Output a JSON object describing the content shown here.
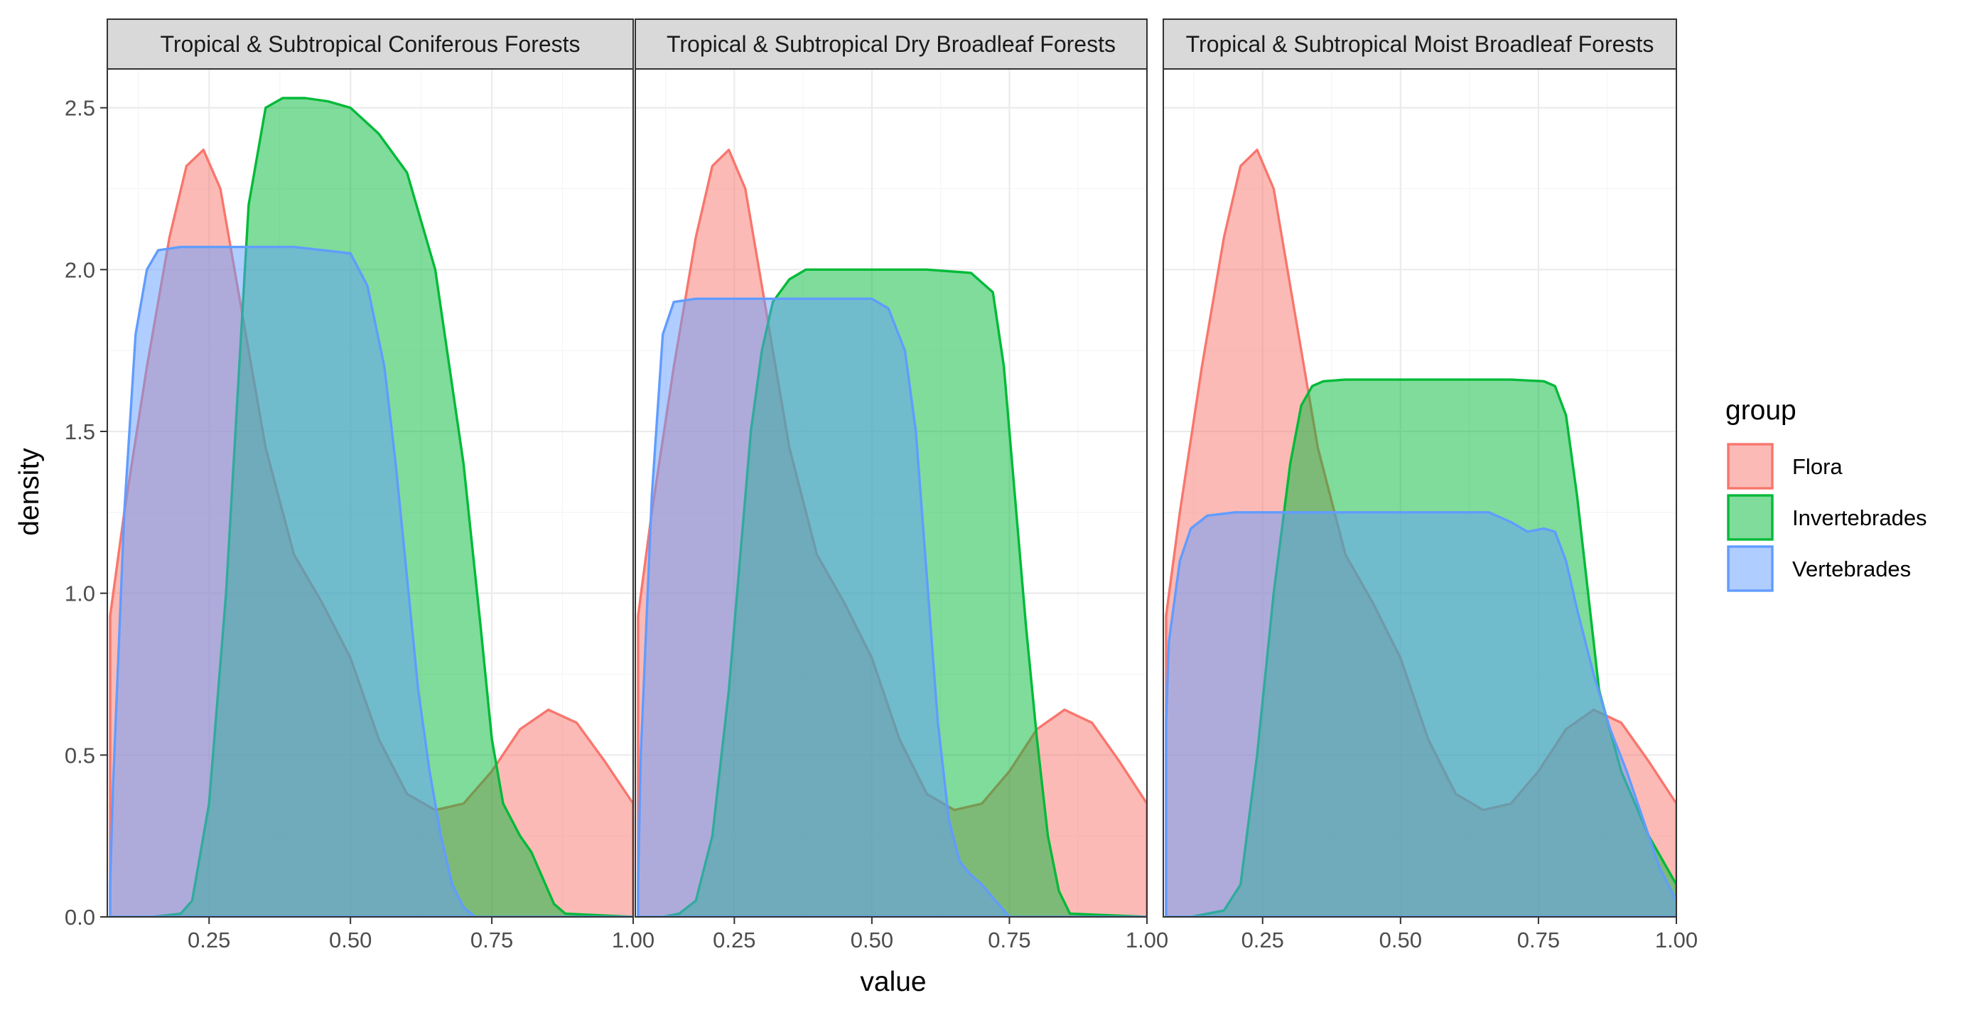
{
  "chart_data": {
    "type": "area",
    "xlabel": "value",
    "ylabel": "density",
    "xlim": [
      0.07,
      1.0
    ],
    "ylim": [
      0,
      2.62
    ],
    "x_ticks": [
      0.25,
      0.5,
      0.75,
      1.0
    ],
    "x_tick_labels": [
      "0.25",
      "0.50",
      "0.75",
      "1.00"
    ],
    "y_ticks": [
      0,
      0.5,
      1,
      1.5,
      2,
      2.5
    ],
    "y_tick_labels": [
      "0.0",
      "0.5",
      "1.0",
      "1.5",
      "2.0",
      "2.5"
    ],
    "grid": true,
    "legend": {
      "title": "group",
      "position": "right",
      "entries": [
        "Flora",
        "Invertebrades",
        "Vertebrades"
      ]
    },
    "colors": {
      "Flora": "#F8766D",
      "Invertebrades": "#00BA38",
      "Vertebrades": "#619CFF"
    },
    "panels": [
      {
        "title": "Tropical & Subtropical Coniferous Forests",
        "series": [
          {
            "name": "Flora",
            "x": [
              0.075,
              0.1,
              0.14,
              0.18,
              0.21,
              0.24,
              0.27,
              0.3,
              0.35,
              0.4,
              0.45,
              0.5,
              0.55,
              0.6,
              0.65,
              0.7,
              0.75,
              0.8,
              0.85,
              0.9,
              0.95,
              1.0
            ],
            "y": [
              0.93,
              1.25,
              1.7,
              2.1,
              2.32,
              2.37,
              2.25,
              1.95,
              1.45,
              1.12,
              0.97,
              0.8,
              0.55,
              0.38,
              0.33,
              0.35,
              0.45,
              0.58,
              0.64,
              0.6,
              0.48,
              0.35
            ]
          },
          {
            "name": "Invertebrades",
            "x": [
              0.075,
              0.15,
              0.2,
              0.22,
              0.25,
              0.28,
              0.3,
              0.32,
              0.35,
              0.38,
              0.42,
              0.46,
              0.5,
              0.55,
              0.6,
              0.65,
              0.7,
              0.73,
              0.75,
              0.77,
              0.8,
              0.82,
              0.84,
              0.86,
              0.88,
              1.0
            ],
            "y": [
              0,
              0,
              0.01,
              0.05,
              0.35,
              1.0,
              1.6,
              2.2,
              2.5,
              2.53,
              2.53,
              2.52,
              2.5,
              2.42,
              2.3,
              2.0,
              1.4,
              0.9,
              0.55,
              0.35,
              0.25,
              0.2,
              0.12,
              0.04,
              0.01,
              0
            ]
          },
          {
            "name": "Vertebrades",
            "x": [
              0.075,
              0.08,
              0.1,
              0.12,
              0.14,
              0.16,
              0.2,
              0.3,
              0.4,
              0.5,
              0.53,
              0.56,
              0.58,
              0.6,
              0.62,
              0.64,
              0.66,
              0.68,
              0.7,
              0.72,
              1.0
            ],
            "y": [
              0.1,
              0.4,
              1.25,
              1.8,
              2.0,
              2.06,
              2.07,
              2.07,
              2.07,
              2.05,
              1.95,
              1.7,
              1.4,
              1.05,
              0.7,
              0.45,
              0.25,
              0.1,
              0.03,
              0,
              0
            ]
          }
        ]
      },
      {
        "title": "Tropical & Subtropical Dry Broadleaf Forests",
        "series": [
          {
            "name": "Flora",
            "x": [
              0.075,
              0.1,
              0.14,
              0.18,
              0.21,
              0.24,
              0.27,
              0.3,
              0.35,
              0.4,
              0.45,
              0.5,
              0.55,
              0.6,
              0.65,
              0.7,
              0.75,
              0.8,
              0.85,
              0.9,
              0.95,
              1.0
            ],
            "y": [
              0.93,
              1.25,
              1.7,
              2.1,
              2.32,
              2.37,
              2.25,
              1.95,
              1.45,
              1.12,
              0.97,
              0.8,
              0.55,
              0.38,
              0.33,
              0.35,
              0.45,
              0.58,
              0.64,
              0.6,
              0.48,
              0.35
            ]
          },
          {
            "name": "Invertebrades",
            "x": [
              0.075,
              0.12,
              0.15,
              0.18,
              0.21,
              0.24,
              0.26,
              0.28,
              0.3,
              0.32,
              0.35,
              0.38,
              0.42,
              0.5,
              0.6,
              0.68,
              0.72,
              0.74,
              0.76,
              0.78,
              0.8,
              0.82,
              0.84,
              0.86,
              1.0
            ],
            "y": [
              0,
              0,
              0.01,
              0.05,
              0.25,
              0.7,
              1.1,
              1.5,
              1.75,
              1.9,
              1.97,
              2.0,
              2.0,
              2.0,
              2.0,
              1.99,
              1.93,
              1.7,
              1.3,
              0.9,
              0.55,
              0.25,
              0.08,
              0.01,
              0
            ]
          },
          {
            "name": "Vertebrades",
            "x": [
              0.075,
              0.08,
              0.1,
              0.12,
              0.14,
              0.18,
              0.3,
              0.4,
              0.5,
              0.53,
              0.56,
              0.58,
              0.6,
              0.62,
              0.64,
              0.66,
              0.68,
              0.7,
              0.72,
              0.75,
              1.0
            ],
            "y": [
              0.1,
              0.5,
              1.3,
              1.8,
              1.9,
              1.91,
              1.91,
              1.91,
              1.91,
              1.88,
              1.75,
              1.5,
              1.05,
              0.6,
              0.3,
              0.17,
              0.13,
              0.1,
              0.06,
              0,
              0
            ]
          }
        ]
      },
      {
        "title": "Tropical & Subtropical Moist Broadleaf Forests",
        "series": [
          {
            "name": "Flora",
            "x": [
              0.075,
              0.1,
              0.14,
              0.18,
              0.21,
              0.24,
              0.27,
              0.3,
              0.35,
              0.4,
              0.45,
              0.5,
              0.55,
              0.6,
              0.65,
              0.7,
              0.75,
              0.8,
              0.85,
              0.9,
              0.95,
              1.0
            ],
            "y": [
              0.93,
              1.25,
              1.7,
              2.1,
              2.32,
              2.37,
              2.25,
              1.95,
              1.45,
              1.12,
              0.97,
              0.8,
              0.55,
              0.38,
              0.33,
              0.35,
              0.45,
              0.58,
              0.64,
              0.6,
              0.48,
              0.35
            ]
          },
          {
            "name": "Invertebrades",
            "x": [
              0.075,
              0.12,
              0.15,
              0.18,
              0.21,
              0.24,
              0.27,
              0.3,
              0.32,
              0.34,
              0.36,
              0.4,
              0.5,
              0.6,
              0.7,
              0.76,
              0.78,
              0.8,
              0.82,
              0.84,
              0.86,
              0.9,
              0.95,
              1.0
            ],
            "y": [
              0,
              0,
              0.01,
              0.02,
              0.1,
              0.5,
              1.0,
              1.4,
              1.58,
              1.64,
              1.655,
              1.66,
              1.66,
              1.66,
              1.66,
              1.655,
              1.64,
              1.55,
              1.3,
              1.0,
              0.7,
              0.45,
              0.25,
              0.1
            ]
          },
          {
            "name": "Vertebrades",
            "x": [
              0.075,
              0.08,
              0.1,
              0.12,
              0.15,
              0.2,
              0.3,
              0.5,
              0.6,
              0.66,
              0.7,
              0.73,
              0.76,
              0.78,
              0.8,
              0.82,
              0.85,
              0.88,
              0.91,
              0.94,
              0.97,
              1.0
            ],
            "y": [
              0.6,
              0.85,
              1.1,
              1.2,
              1.24,
              1.25,
              1.25,
              1.25,
              1.25,
              1.25,
              1.22,
              1.19,
              1.2,
              1.19,
              1.1,
              0.95,
              0.75,
              0.58,
              0.45,
              0.3,
              0.15,
              0.05
            ]
          }
        ]
      }
    ]
  }
}
